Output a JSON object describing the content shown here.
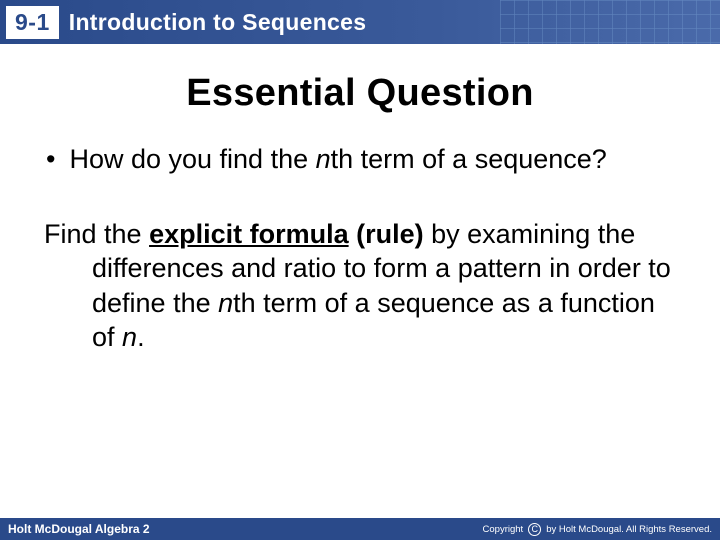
{
  "header": {
    "section_number": "9-1",
    "title": "Introduction to Sequences",
    "bar_color": "#2a4a8a",
    "badge_bg": "#ffffff",
    "badge_fg": "#2a4a8a",
    "title_color": "#ffffff"
  },
  "content": {
    "heading": "Essential Question",
    "heading_fontsize": 38,
    "bullet_prefix": "•",
    "question_pre": "How do you find the ",
    "question_ital": "n",
    "question_post": "th term of a sequence?",
    "answer_lead": "Find the ",
    "answer_underlined": "explicit formula",
    "answer_rule": " (rule)",
    "answer_mid1": " by examining the differences and ratio to form a pattern in order to define the ",
    "answer_ital1": "n",
    "answer_mid2": "th term of a sequence as a function of ",
    "answer_ital2": "n",
    "answer_end": ".",
    "body_fontsize": 27,
    "text_color": "#000000"
  },
  "footer": {
    "left": "Holt McDougal Algebra 2",
    "right": "by Holt McDougal. All Rights Reserved.",
    "copyright_label": "Copyright",
    "c_symbol": "C",
    "bg": "#2a4a8a",
    "fg": "#ffffff"
  }
}
